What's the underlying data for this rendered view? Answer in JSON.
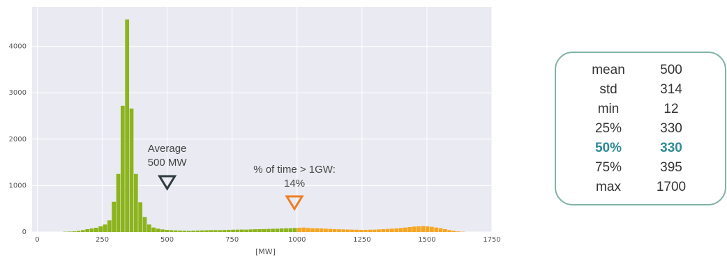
{
  "chart_data": {
    "type": "bar",
    "xlabel": "[MW]",
    "ylabel": "",
    "xlim": [
      -20,
      1750
    ],
    "ylim": [
      0,
      4850
    ],
    "xticks": [
      0,
      250,
      500,
      750,
      1000,
      1250,
      1500,
      1750
    ],
    "yticks": [
      0,
      1000,
      2000,
      3000,
      4000
    ],
    "grid": true,
    "bin_width": 17,
    "series": [
      {
        "color": "#8cb41c",
        "bins": [
          {
            "x": 100,
            "y": 5
          },
          {
            "x": 117,
            "y": 8
          },
          {
            "x": 134,
            "y": 12
          },
          {
            "x": 151,
            "y": 22
          },
          {
            "x": 168,
            "y": 40
          },
          {
            "x": 185,
            "y": 60
          },
          {
            "x": 202,
            "y": 75
          },
          {
            "x": 219,
            "y": 90
          },
          {
            "x": 236,
            "y": 120
          },
          {
            "x": 253,
            "y": 160
          },
          {
            "x": 270,
            "y": 250
          },
          {
            "x": 287,
            "y": 650
          },
          {
            "x": 304,
            "y": 1250
          },
          {
            "x": 321,
            "y": 2720
          },
          {
            "x": 338,
            "y": 4580
          },
          {
            "x": 355,
            "y": 2660
          },
          {
            "x": 372,
            "y": 1250
          },
          {
            "x": 389,
            "y": 640
          },
          {
            "x": 406,
            "y": 320
          },
          {
            "x": 423,
            "y": 160
          },
          {
            "x": 440,
            "y": 95
          },
          {
            "x": 457,
            "y": 70
          },
          {
            "x": 474,
            "y": 55
          },
          {
            "x": 491,
            "y": 45
          },
          {
            "x": 508,
            "y": 38
          },
          {
            "x": 525,
            "y": 32
          },
          {
            "x": 542,
            "y": 28
          },
          {
            "x": 559,
            "y": 25
          },
          {
            "x": 576,
            "y": 22
          },
          {
            "x": 593,
            "y": 25
          },
          {
            "x": 610,
            "y": 28
          },
          {
            "x": 627,
            "y": 32
          },
          {
            "x": 644,
            "y": 35
          },
          {
            "x": 661,
            "y": 38
          },
          {
            "x": 678,
            "y": 40
          },
          {
            "x": 695,
            "y": 38
          },
          {
            "x": 712,
            "y": 42
          },
          {
            "x": 729,
            "y": 45
          },
          {
            "x": 746,
            "y": 48
          },
          {
            "x": 763,
            "y": 50
          },
          {
            "x": 780,
            "y": 52
          },
          {
            "x": 797,
            "y": 50
          },
          {
            "x": 814,
            "y": 55
          },
          {
            "x": 831,
            "y": 58
          },
          {
            "x": 848,
            "y": 60
          },
          {
            "x": 865,
            "y": 62
          },
          {
            "x": 882,
            "y": 65
          },
          {
            "x": 899,
            "y": 68
          },
          {
            "x": 916,
            "y": 70
          },
          {
            "x": 933,
            "y": 75
          },
          {
            "x": 950,
            "y": 78
          },
          {
            "x": 967,
            "y": 80
          },
          {
            "x": 984,
            "y": 85
          }
        ]
      },
      {
        "color": "#f5a623",
        "bins": [
          {
            "x": 1001,
            "y": 90
          },
          {
            "x": 1018,
            "y": 95
          },
          {
            "x": 1035,
            "y": 85
          },
          {
            "x": 1052,
            "y": 80
          },
          {
            "x": 1069,
            "y": 78
          },
          {
            "x": 1086,
            "y": 75
          },
          {
            "x": 1103,
            "y": 70
          },
          {
            "x": 1120,
            "y": 65
          },
          {
            "x": 1137,
            "y": 60
          },
          {
            "x": 1154,
            "y": 58
          },
          {
            "x": 1171,
            "y": 55
          },
          {
            "x": 1188,
            "y": 52
          },
          {
            "x": 1205,
            "y": 50
          },
          {
            "x": 1222,
            "y": 48
          },
          {
            "x": 1239,
            "y": 45
          },
          {
            "x": 1256,
            "y": 45
          },
          {
            "x": 1273,
            "y": 48
          },
          {
            "x": 1290,
            "y": 50
          },
          {
            "x": 1307,
            "y": 55
          },
          {
            "x": 1324,
            "y": 60
          },
          {
            "x": 1341,
            "y": 65
          },
          {
            "x": 1358,
            "y": 70
          },
          {
            "x": 1375,
            "y": 75
          },
          {
            "x": 1392,
            "y": 85
          },
          {
            "x": 1409,
            "y": 95
          },
          {
            "x": 1426,
            "y": 105
          },
          {
            "x": 1443,
            "y": 115
          },
          {
            "x": 1460,
            "y": 120
          },
          {
            "x": 1477,
            "y": 125
          },
          {
            "x": 1494,
            "y": 120
          },
          {
            "x": 1511,
            "y": 110
          },
          {
            "x": 1528,
            "y": 95
          },
          {
            "x": 1545,
            "y": 80
          },
          {
            "x": 1562,
            "y": 60
          },
          {
            "x": 1579,
            "y": 40
          },
          {
            "x": 1596,
            "y": 22
          },
          {
            "x": 1613,
            "y": 10
          },
          {
            "x": 1630,
            "y": 5
          }
        ]
      }
    ],
    "annotations": [
      {
        "line1": "Average",
        "line2": "500 MW",
        "x": 500,
        "marker_color": "#2f3b3c"
      },
      {
        "line1": "% of time > 1GW:",
        "line2": "14%",
        "x": 990,
        "marker_color": "#ef7d22"
      }
    ]
  },
  "stats": [
    {
      "label": "mean",
      "value": "500",
      "highlight": false
    },
    {
      "label": "std",
      "value": "314",
      "highlight": false
    },
    {
      "label": "min",
      "value": "12",
      "highlight": false
    },
    {
      "label": "25%",
      "value": "330",
      "highlight": false
    },
    {
      "label": "50%",
      "value": "330",
      "highlight": true
    },
    {
      "label": "75%",
      "value": "395",
      "highlight": false
    },
    {
      "label": "max",
      "value": "1700",
      "highlight": false
    }
  ],
  "colors": {
    "plot_bg": "#eaeaf2",
    "grid": "#ffffff",
    "box_border": "#7fb3a6",
    "highlight_text": "#2e8b96"
  }
}
